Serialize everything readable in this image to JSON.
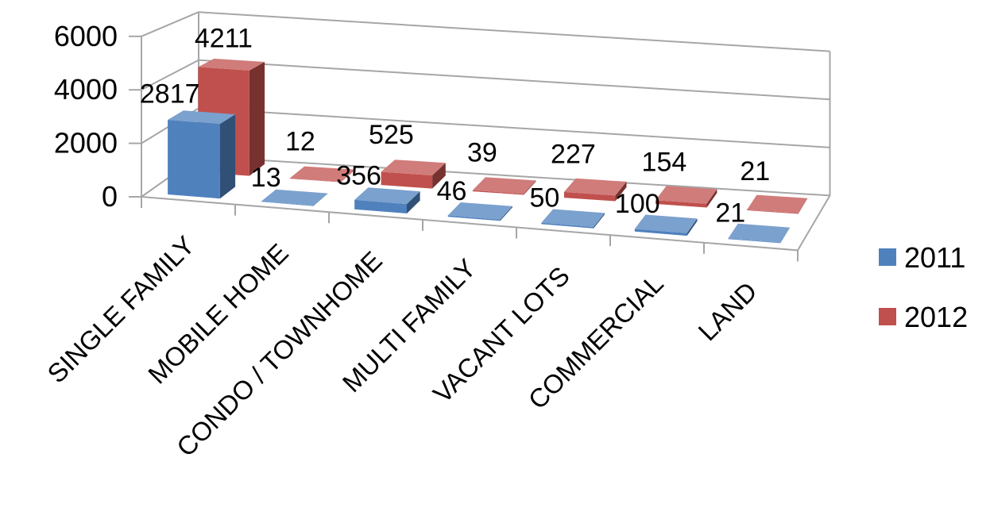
{
  "chart_data": {
    "type": "bar",
    "subtype": "3d-clustered",
    "title": "",
    "xlabel": "",
    "ylabel": "",
    "ylim": [
      0,
      6000
    ],
    "yticks": [
      0,
      2000,
      4000,
      6000
    ],
    "grid": true,
    "legend": "right",
    "categories": [
      "SINGLE FAMILY",
      "MOBILE HOME",
      "CONDO / TOWNHOME",
      "MULTI FAMILY",
      "VACANT LOTS",
      "COMMERCIAL",
      "LAND"
    ],
    "series": [
      {
        "name": "2011",
        "color": "#4f81bd",
        "values": [
          2817,
          13,
          356,
          46,
          50,
          100,
          21
        ]
      },
      {
        "name": "2012",
        "color": "#c0504d",
        "values": [
          4211,
          12,
          525,
          39,
          227,
          154,
          21
        ]
      }
    ]
  }
}
